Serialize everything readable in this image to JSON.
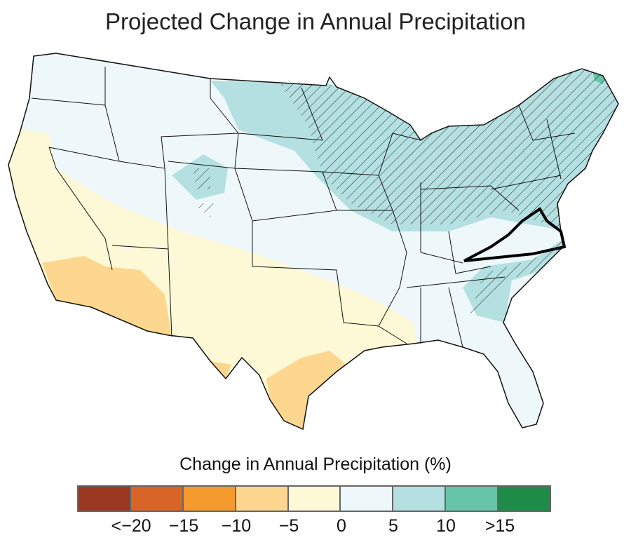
{
  "title": "Projected Change in Annual Precipitation",
  "legend": {
    "title": "Change in Annual Precipitation (%)",
    "colors": [
      "#9a3720",
      "#d96427",
      "#f49a2f",
      "#fdd68f",
      "#fdf9d7",
      "#eef8fb",
      "#b4e0e2",
      "#66c4a8",
      "#1e8b47"
    ],
    "labels": [
      "<−20",
      "−15",
      "−10",
      "−5",
      "0",
      "5",
      "10",
      ">15"
    ]
  },
  "map": {
    "highlighted_state": "Virginia",
    "hatching": "stippled diagonal hatching marks areas of significant change"
  }
}
